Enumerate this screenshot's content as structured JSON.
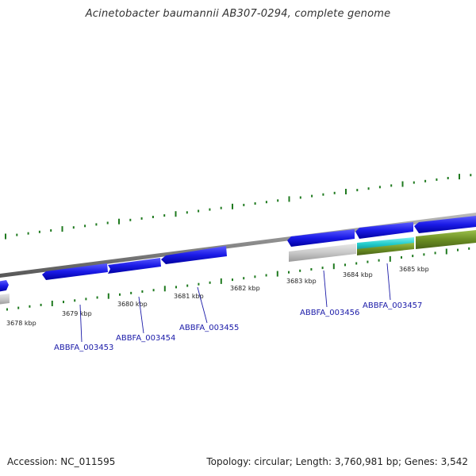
{
  "title": "Acinetobacter baumannii AB307-0294, complete genome",
  "footer": {
    "accession": "Accession: NC_011595",
    "topology": "Topology: circular; Length: 3,760,981 bp; Genes: 3,542"
  },
  "kbp_ticks": [
    "3678 kbp",
    "3679 kbp",
    "3680 kbp",
    "3681 kbp",
    "3682 kbp",
    "3683 kbp",
    "3684 kbp",
    "3685 kbp"
  ],
  "gene_labels": [
    "ABBFA_003453",
    "ABBFA_003454",
    "ABBFA_003455",
    "ABBFA_003456",
    "ABBFA_003457"
  ],
  "colors": {
    "backbone": "#888888",
    "gene_blue": "#1a1ae6",
    "gene_gray": "#c8c8c8",
    "gene_cyan": "#22cccc",
    "gene_olive": "#6b8e23",
    "tick_green": "#1f7a1f",
    "label_blue": "#1a1aa8"
  }
}
